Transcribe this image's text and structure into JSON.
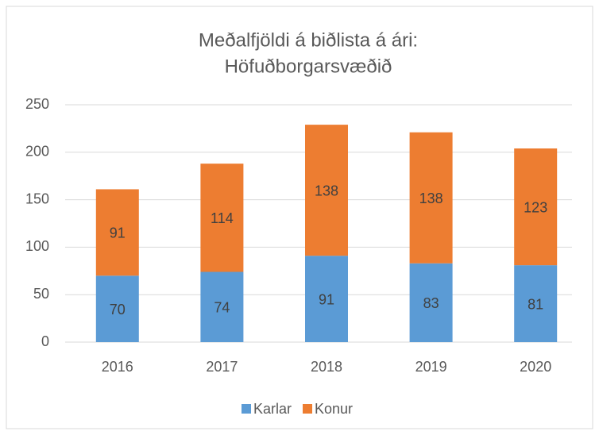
{
  "chart_data": {
    "type": "stacked_bar",
    "title": [
      "Meðalfjöldi á biðlista á ári:",
      "Höfuðborgarsvæðið"
    ],
    "categories": [
      "2016",
      "2017",
      "2018",
      "2019",
      "2020"
    ],
    "series": [
      {
        "name": "Karlar",
        "color": "#5b9bd5",
        "values": [
          70,
          74,
          91,
          83,
          81
        ]
      },
      {
        "name": "Konur",
        "color": "#ed7d31",
        "values": [
          91,
          114,
          138,
          138,
          123
        ]
      }
    ],
    "ylim": [
      0,
      250
    ],
    "yticks": [
      0,
      50,
      100,
      150,
      200,
      250
    ],
    "grid": true,
    "legend": "bottom"
  }
}
